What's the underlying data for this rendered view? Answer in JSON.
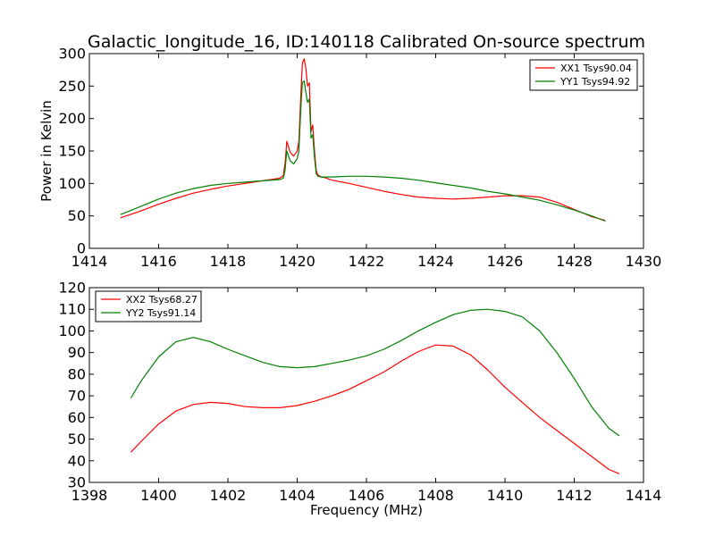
{
  "title": "Galactic_longitude_16, ID:140118 Calibrated On-source spectrum",
  "chart_data": [
    {
      "type": "line",
      "ylabel": "Power in Kelvin",
      "xlabel": "",
      "xlim": [
        1414,
        1430
      ],
      "ylim": [
        0,
        300
      ],
      "xticks": [
        1414,
        1416,
        1418,
        1420,
        1422,
        1424,
        1426,
        1428,
        1430
      ],
      "yticks": [
        0,
        50,
        100,
        150,
        200,
        250,
        300
      ],
      "legend_position": "top-right",
      "series": [
        {
          "name": "XX1 Tsys90.04",
          "color": "#ff0000",
          "x": [
            1414.9,
            1415.5,
            1416.0,
            1416.5,
            1417.0,
            1417.5,
            1418.0,
            1418.5,
            1419.0,
            1419.5,
            1419.6,
            1419.65,
            1419.7,
            1419.8,
            1419.9,
            1420.0,
            1420.05,
            1420.1,
            1420.15,
            1420.2,
            1420.25,
            1420.3,
            1420.35,
            1420.4,
            1420.45,
            1420.5,
            1420.55,
            1420.6,
            1420.7,
            1420.8,
            1421.0,
            1421.5,
            1422.0,
            1422.5,
            1423.0,
            1423.5,
            1424.0,
            1424.5,
            1425.0,
            1425.5,
            1426.0,
            1426.5,
            1427.0,
            1427.5,
            1428.0,
            1428.5,
            1428.9
          ],
          "values": [
            47,
            58,
            68,
            77,
            85,
            91,
            96,
            100,
            104,
            108,
            112,
            130,
            165,
            148,
            142,
            150,
            165,
            230,
            285,
            292,
            278,
            250,
            255,
            180,
            190,
            150,
            120,
            113,
            110,
            109,
            105,
            100,
            94,
            88,
            83,
            79,
            77,
            76,
            77,
            79,
            81,
            81,
            79,
            71,
            60,
            49,
            43
          ]
        },
        {
          "name": "YY1 Tsys94.92",
          "color": "#008000",
          "x": [
            1414.9,
            1415.5,
            1416.0,
            1416.5,
            1417.0,
            1417.5,
            1418.0,
            1418.5,
            1419.0,
            1419.5,
            1419.6,
            1419.65,
            1419.7,
            1419.8,
            1419.9,
            1420.0,
            1420.05,
            1420.1,
            1420.15,
            1420.2,
            1420.25,
            1420.3,
            1420.35,
            1420.4,
            1420.45,
            1420.5,
            1420.55,
            1420.6,
            1420.7,
            1420.8,
            1421.0,
            1421.5,
            1422.0,
            1422.5,
            1423.0,
            1423.5,
            1424.0,
            1424.5,
            1425.0,
            1425.5,
            1426.0,
            1426.5,
            1427.0,
            1427.5,
            1428.0,
            1428.5,
            1428.9
          ],
          "values": [
            52,
            65,
            76,
            85,
            92,
            97,
            100,
            102,
            104,
            106,
            108,
            120,
            150,
            135,
            130,
            138,
            150,
            210,
            255,
            258,
            240,
            225,
            230,
            170,
            175,
            140,
            115,
            111,
            110,
            110,
            110,
            111,
            111,
            110,
            108,
            105,
            101,
            97,
            93,
            88,
            84,
            79,
            74,
            67,
            59,
            50,
            42
          ]
        }
      ]
    },
    {
      "type": "line",
      "ylabel": "",
      "xlabel": "Frequency (MHz)",
      "xlim": [
        1398,
        1414
      ],
      "ylim": [
        30,
        120
      ],
      "xticks": [
        1398,
        1400,
        1402,
        1404,
        1406,
        1408,
        1410,
        1412,
        1414
      ],
      "yticks": [
        30,
        40,
        50,
        60,
        70,
        80,
        90,
        100,
        110,
        120
      ],
      "legend_position": "top-left",
      "series": [
        {
          "name": "XX2 Tsys68.27",
          "color": "#ff0000",
          "x": [
            1399.2,
            1399.5,
            1400.0,
            1400.5,
            1401.0,
            1401.5,
            1402.0,
            1402.5,
            1403.0,
            1403.5,
            1404.0,
            1404.5,
            1405.0,
            1405.5,
            1406.0,
            1406.5,
            1407.0,
            1407.5,
            1408.0,
            1408.5,
            1409.0,
            1409.5,
            1410.0,
            1410.5,
            1411.0,
            1411.5,
            1412.0,
            1412.5,
            1413.0,
            1413.3
          ],
          "values": [
            44,
            49,
            57,
            63,
            66,
            67,
            66.5,
            65,
            64.5,
            64.5,
            65.5,
            67.5,
            70,
            73,
            77,
            81,
            86,
            90.5,
            93.5,
            93,
            89,
            82,
            74,
            67,
            60,
            54,
            48,
            42,
            36,
            34
          ]
        },
        {
          "name": "YY2 Tsys91.14",
          "color": "#008000",
          "x": [
            1399.2,
            1399.5,
            1400.0,
            1400.5,
            1401.0,
            1401.5,
            1402.0,
            1402.5,
            1403.0,
            1403.5,
            1404.0,
            1404.5,
            1405.0,
            1405.5,
            1406.0,
            1406.5,
            1407.0,
            1407.5,
            1408.0,
            1408.5,
            1409.0,
            1409.5,
            1410.0,
            1410.5,
            1411.0,
            1411.5,
            1412.0,
            1412.5,
            1413.0,
            1413.3
          ],
          "values": [
            69,
            77,
            88,
            95,
            97,
            95,
            91.5,
            88.5,
            85.5,
            83.5,
            83,
            83.5,
            85,
            86.5,
            88.5,
            91.5,
            95.5,
            100,
            104,
            107.5,
            109.5,
            110,
            109,
            106.5,
            100,
            90,
            78,
            65,
            55,
            51.5
          ]
        }
      ]
    }
  ]
}
